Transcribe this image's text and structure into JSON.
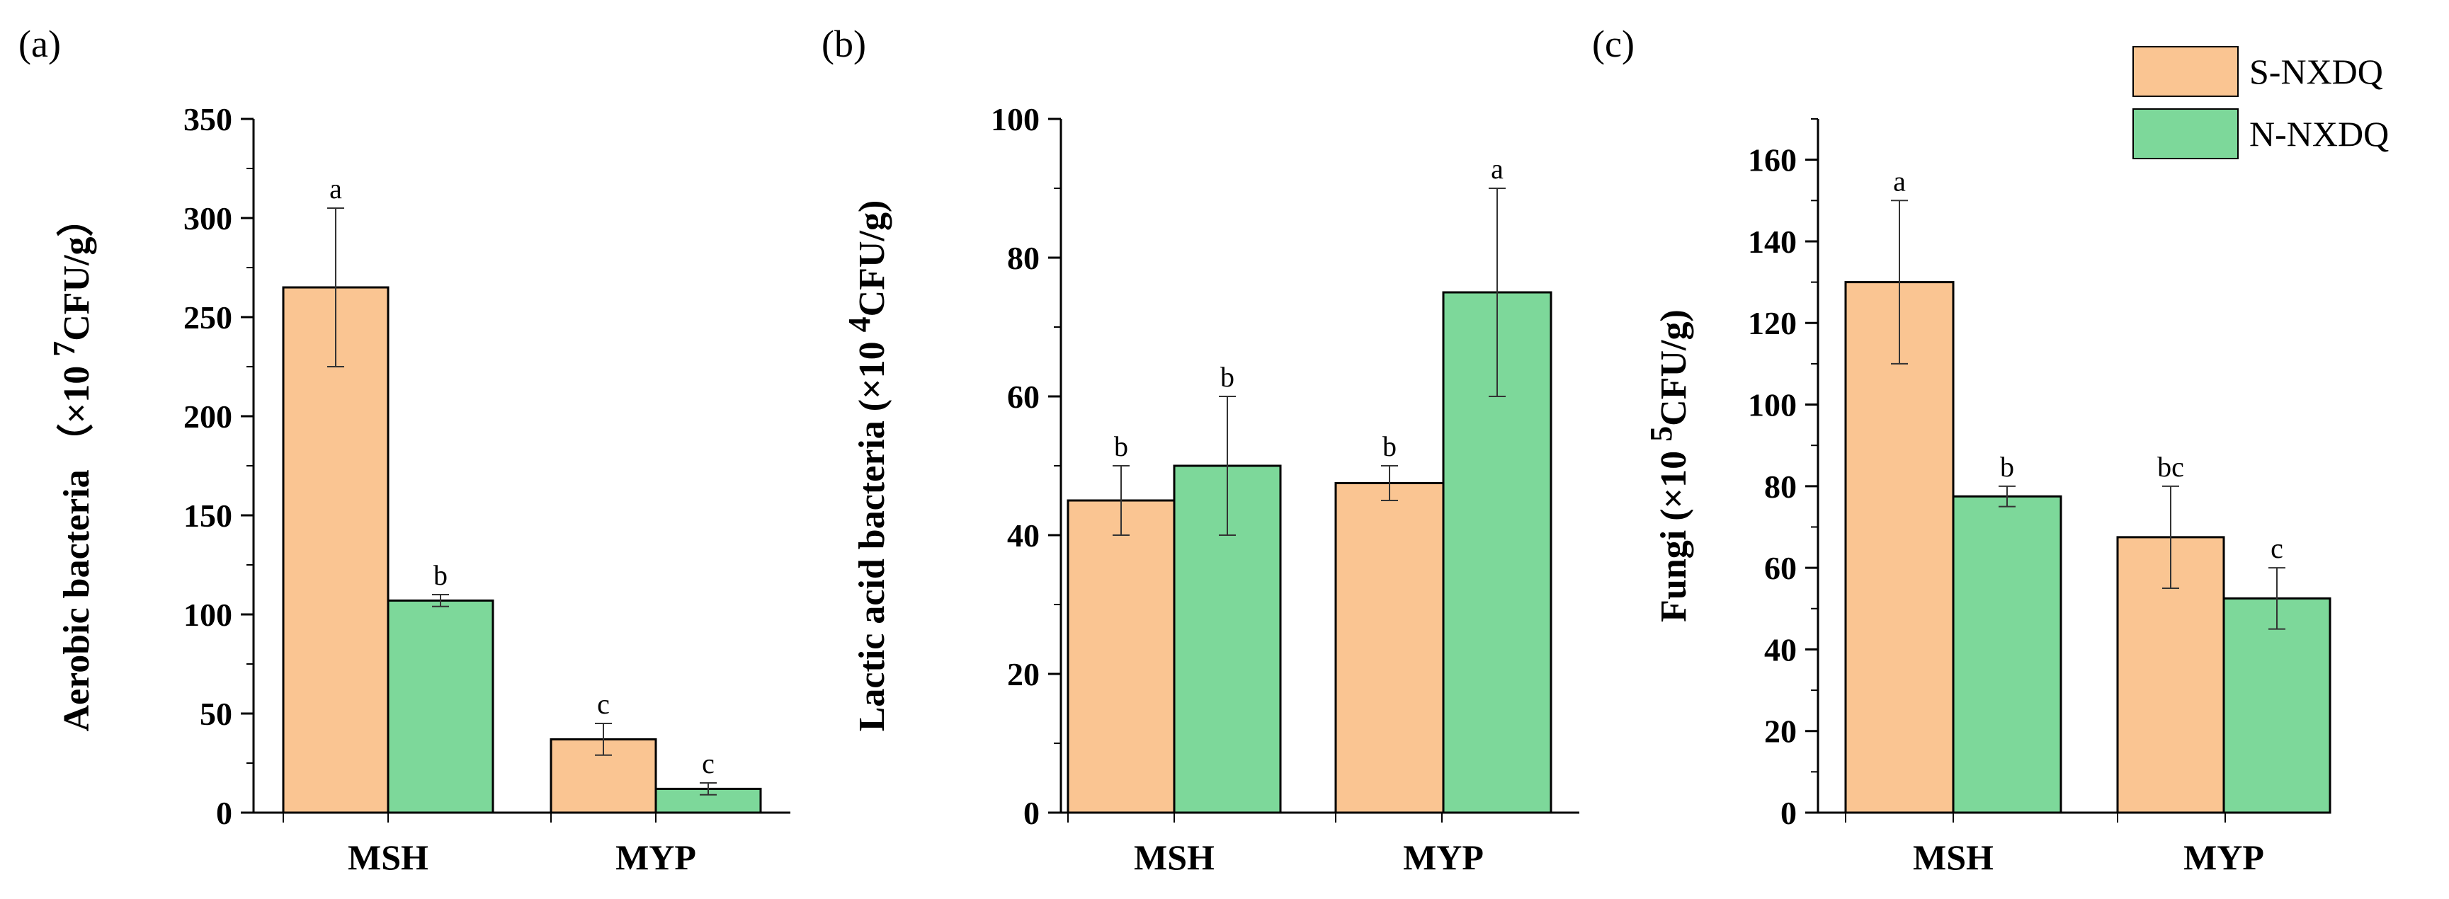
{
  "colors": {
    "series1": "#FAC592",
    "series2": "#7DD89A",
    "axis": "#000000",
    "error": "#333333"
  },
  "legend": [
    {
      "name": "S-NXDQ",
      "color": "#FAC592"
    },
    {
      "name": "N-NXDQ",
      "color": "#7DD89A"
    }
  ],
  "chart_data": [
    {
      "type": "bar",
      "panel_label": "(a)",
      "ylabel_text": "Aerobic bacteria  （×10 ",
      "ylabel_sup": "7",
      "ylabel_tail": "CFU/g）",
      "categories": [
        "MSH",
        "MYP"
      ],
      "ylim": [
        0,
        350
      ],
      "yticks": [
        0,
        50,
        100,
        150,
        200,
        250,
        300,
        350
      ],
      "series": [
        {
          "name": "S-NXDQ",
          "values": [
            265,
            37
          ],
          "errors": [
            40,
            8
          ],
          "labels": [
            "a",
            "c"
          ]
        },
        {
          "name": "N-NXDQ",
          "values": [
            107,
            12
          ],
          "errors": [
            3,
            3
          ],
          "labels": [
            "b",
            "c"
          ]
        }
      ]
    },
    {
      "type": "bar",
      "panel_label": "(b)",
      "ylabel_text": "Lactic acid bacteria  (×10 ",
      "ylabel_sup": "4",
      "ylabel_tail": "CFU/g)",
      "categories": [
        "MSH",
        "MYP"
      ],
      "ylim": [
        0,
        100
      ],
      "yticks": [
        0,
        20,
        40,
        60,
        80,
        100
      ],
      "series": [
        {
          "name": "S-NXDQ",
          "values": [
            45,
            47.5
          ],
          "errors": [
            5,
            2.5
          ],
          "labels": [
            "b",
            "b"
          ]
        },
        {
          "name": "N-NXDQ",
          "values": [
            50,
            75
          ],
          "errors": [
            10,
            15
          ],
          "labels": [
            "b",
            "a"
          ]
        }
      ]
    },
    {
      "type": "bar",
      "panel_label": "(c)",
      "ylabel_text": "Fungi (×10 ",
      "ylabel_sup": "5",
      "ylabel_tail": "CFU/g)",
      "categories": [
        "MSH",
        "MYP"
      ],
      "ylim": [
        0,
        170
      ],
      "yticks": [
        0,
        20,
        40,
        60,
        80,
        100,
        120,
        140,
        160
      ],
      "series": [
        {
          "name": "S-NXDQ",
          "values": [
            130,
            67.5
          ],
          "errors": [
            20,
            12.5
          ],
          "labels": [
            "a",
            "bc"
          ]
        },
        {
          "name": "N-NXDQ",
          "values": [
            77.5,
            52.5
          ],
          "errors": [
            2.5,
            7.5
          ],
          "labels": [
            "b",
            "c"
          ]
        }
      ]
    }
  ]
}
